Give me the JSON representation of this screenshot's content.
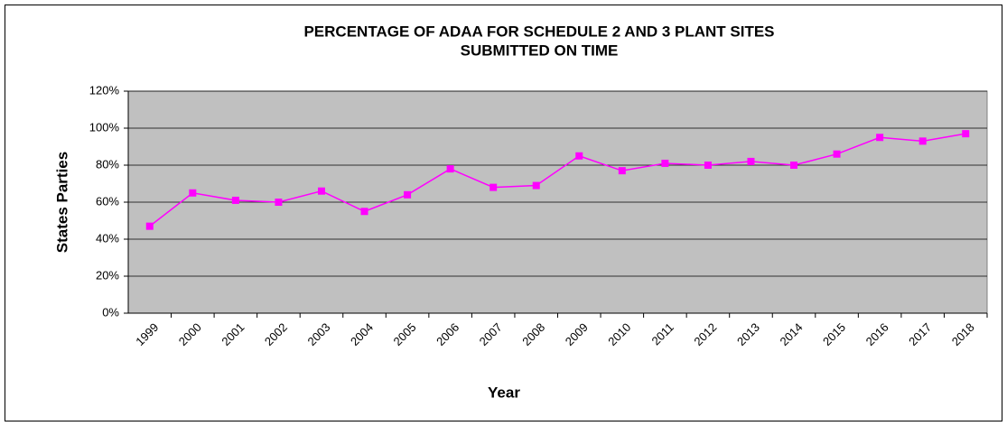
{
  "chart_data": {
    "type": "line",
    "title": [
      "PERCENTAGE OF ADAA FOR SCHEDULE 2 AND 3 PLANT SITES",
      "SUBMITTED ON TIME"
    ],
    "x_label": "Year",
    "y_label": "States Parties",
    "categories": [
      "1999",
      "2000",
      "2001",
      "2002",
      "2003",
      "2004",
      "2005",
      "2006",
      "2007",
      "2008",
      "2009",
      "2010",
      "2011",
      "2012",
      "2013",
      "2014",
      "2015",
      "2016",
      "2017",
      "2018"
    ],
    "series": [
      {
        "name": "States Parties",
        "color": "#ff00ff",
        "values": [
          47,
          65,
          61,
          60,
          66,
          55,
          64,
          78,
          68,
          69,
          85,
          77,
          81,
          80,
          82,
          80,
          86,
          95,
          93,
          97
        ]
      }
    ],
    "ylim": [
      0,
      120
    ],
    "yticks": [
      {
        "value": 0,
        "label": "0%"
      },
      {
        "value": 20,
        "label": "20%"
      },
      {
        "value": 40,
        "label": "40%"
      },
      {
        "value": 60,
        "label": "60%"
      },
      {
        "value": 80,
        "label": "80%"
      },
      {
        "value": 100,
        "label": "100%"
      },
      {
        "value": 120,
        "label": "120%"
      }
    ],
    "grid": true
  }
}
